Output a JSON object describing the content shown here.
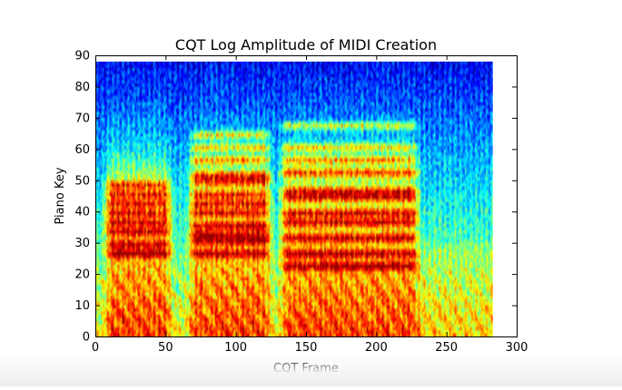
{
  "chart_data": {
    "type": "heatmap",
    "title": "CQT Log Amplitude of MIDI Creation",
    "xlabel": "CQT Frame",
    "ylabel": "Piano Key",
    "xlim": [
      0,
      300
    ],
    "ylim": [
      0,
      90
    ],
    "x_ticks": [
      0,
      50,
      100,
      150,
      200,
      250,
      300
    ],
    "y_ticks": [
      0,
      10,
      20,
      30,
      40,
      50,
      60,
      70,
      80,
      90
    ],
    "data_extent": {
      "frames": [
        0,
        283
      ],
      "keys": [
        0,
        88
      ]
    },
    "colormap": "jet",
    "grid": false,
    "legend": "none",
    "segments": [
      {
        "frames": [
          8,
          52
        ],
        "harmonic_keys": [
          26,
          29,
          33,
          36,
          39,
          42,
          45,
          48
        ]
      },
      {
        "frames": [
          68,
          123
        ],
        "harmonic_keys": [
          26,
          30,
          32,
          35,
          39,
          42,
          45,
          49,
          51,
          56,
          60,
          64
        ]
      },
      {
        "frames": [
          133,
          228
        ],
        "harmonic_keys": [
          22,
          26,
          31,
          36,
          39,
          44,
          46,
          52,
          56,
          60,
          67
        ]
      }
    ]
  },
  "colors": {
    "background": "#ffffff",
    "axes_edge": "#000000",
    "text": "#000000"
  }
}
